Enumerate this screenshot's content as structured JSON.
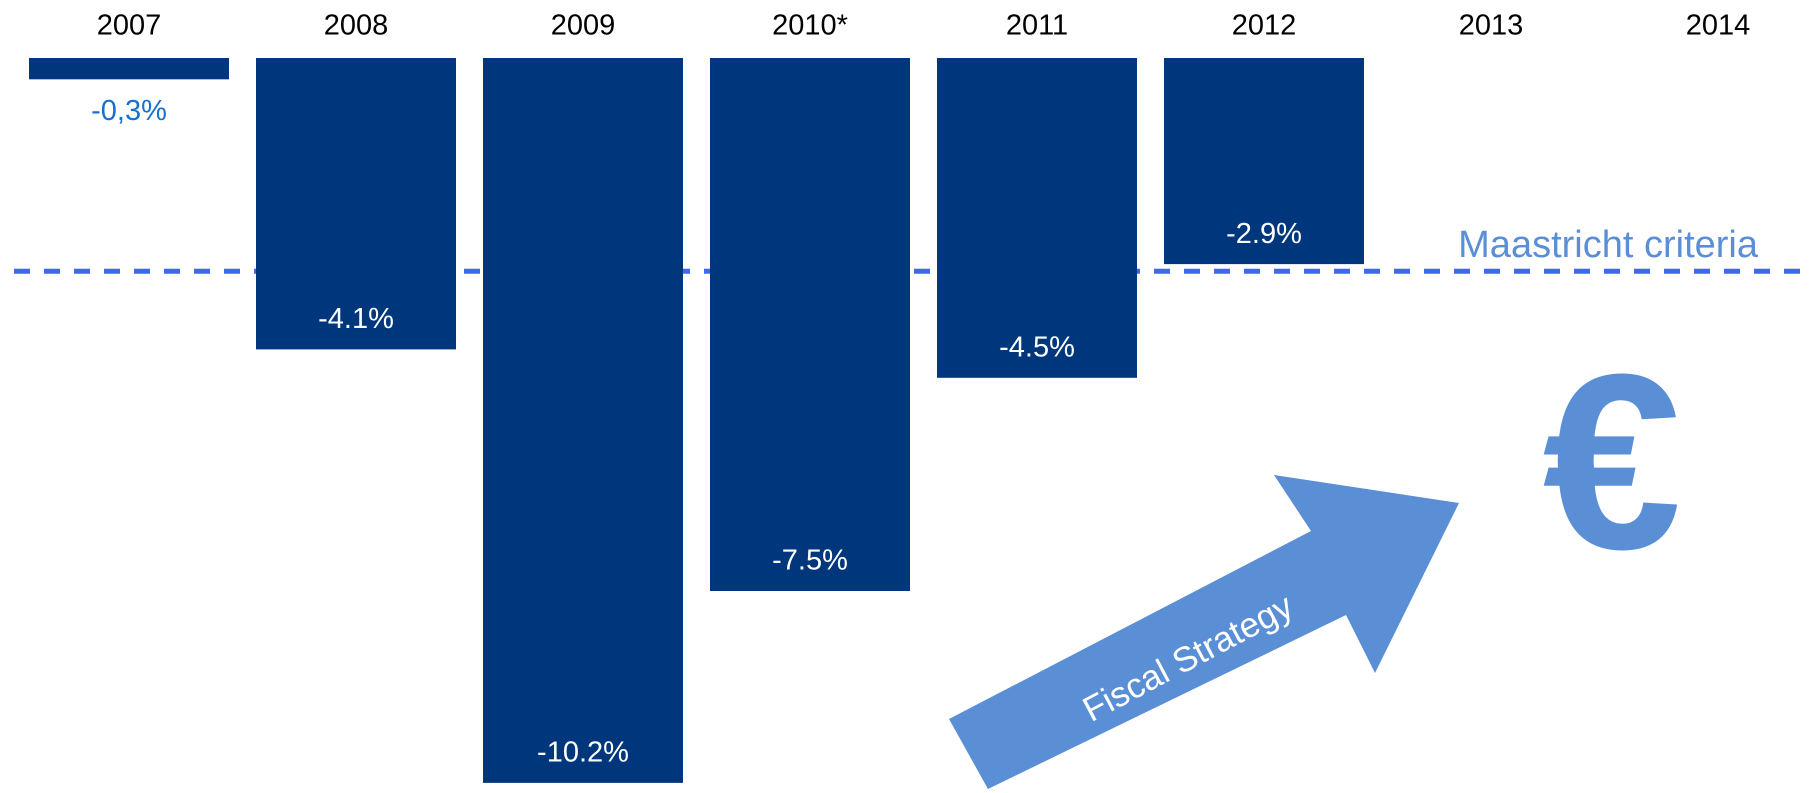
{
  "chart_data": {
    "type": "bar",
    "categories": [
      "2007",
      "2008",
      "2009",
      "2010*",
      "2011",
      "2012",
      "2013",
      "2014"
    ],
    "values": [
      -0.3,
      -4.1,
      -10.2,
      -7.5,
      -4.5,
      -2.9,
      null,
      null
    ],
    "value_labels": [
      "-0,3%",
      "-4.1%",
      "-10.2%",
      "-7.5%",
      "-4.5%",
      "-2.9%",
      null,
      null
    ],
    "color": "#00367c",
    "ylim": [
      -10.3,
      0
    ],
    "reference_line": {
      "label": "Maastricht criteria",
      "value": -3,
      "color": "#3f67f2"
    },
    "annotations": [
      "Fiscal Strategy",
      "€"
    ]
  }
}
